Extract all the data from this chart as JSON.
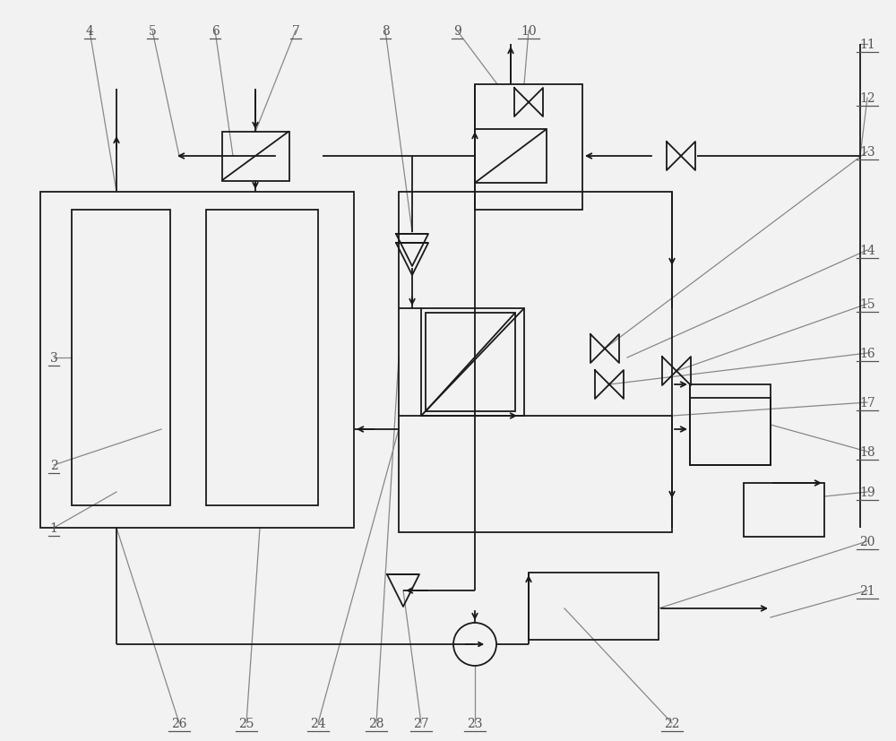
{
  "bg_color": "#f2f2f2",
  "line_color": "#1a1a1a",
  "label_color": "#888888",
  "lw": 1.3,
  "arrow_lw": 1.3,
  "ref_lw": 0.9,
  "valve_size": 0.018,
  "font_size": 10,
  "label_font_size": 10
}
